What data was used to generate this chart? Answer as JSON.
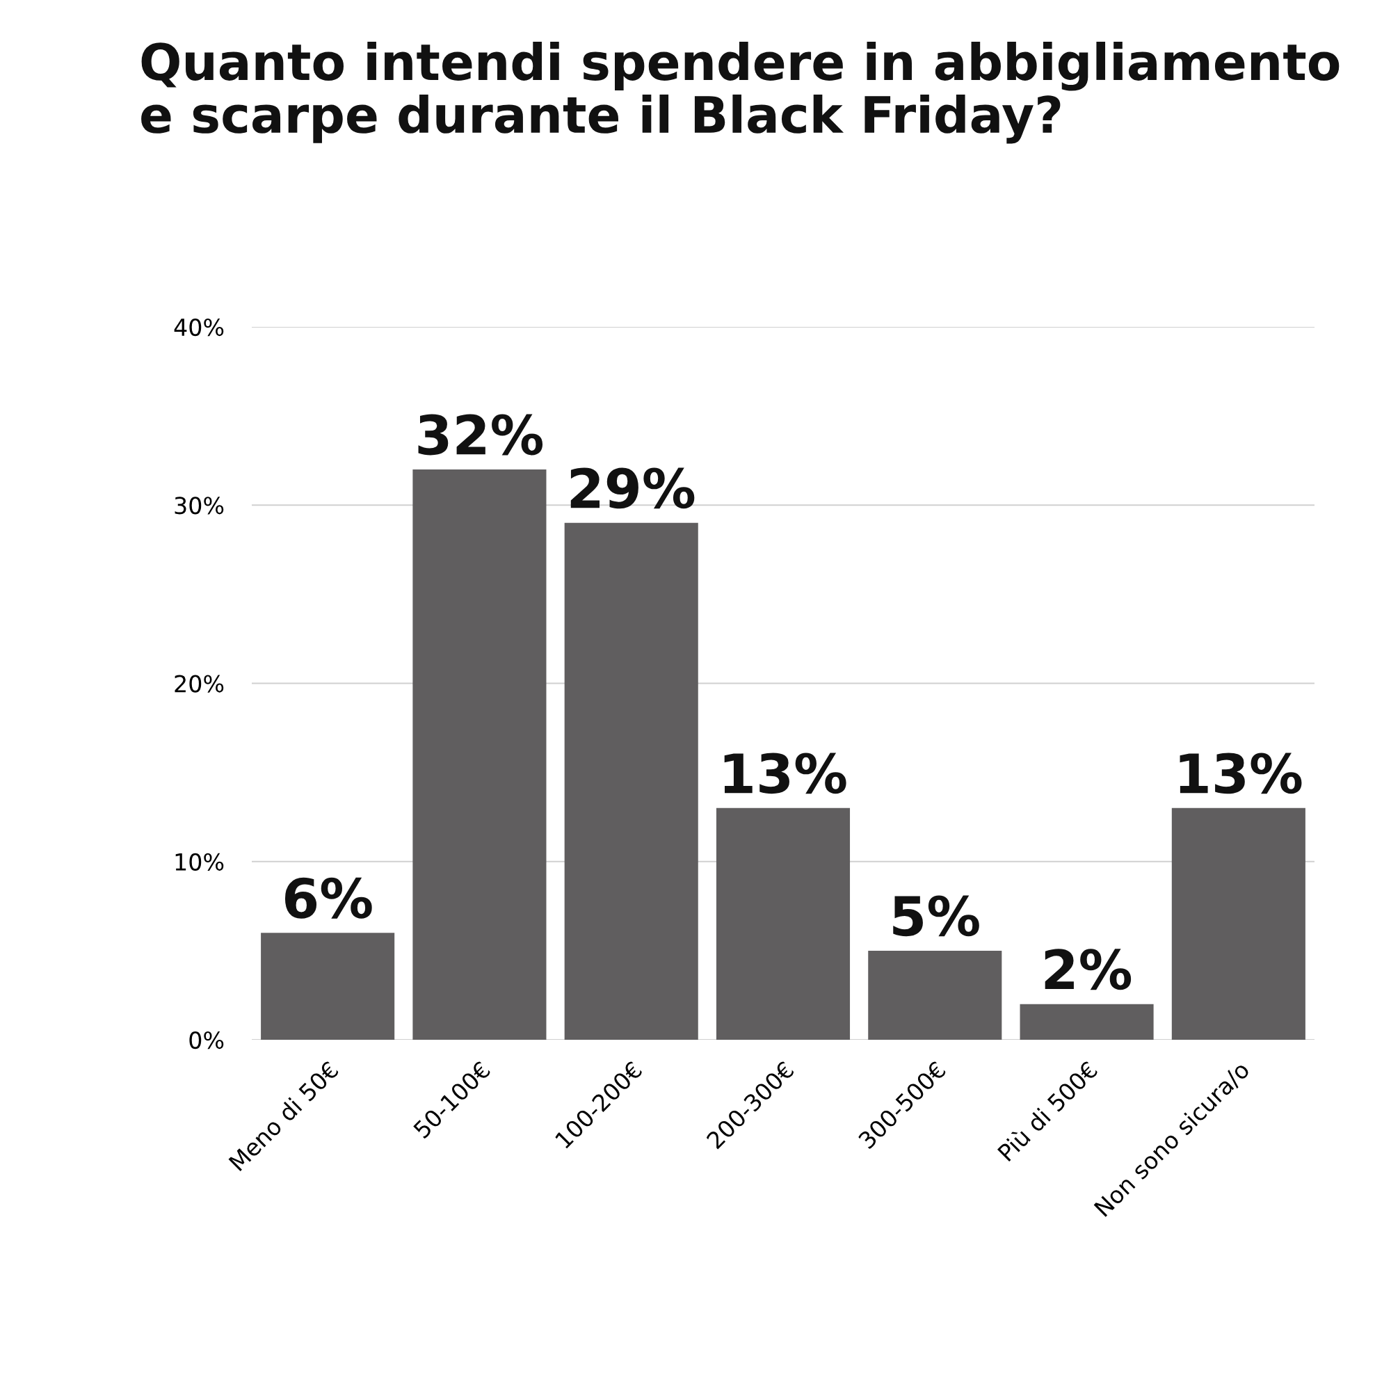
{
  "chart_data": {
    "type": "bar",
    "title": "Quanto intendi spendere in abbigliamento e scarpe durante il Black Friday?",
    "categories": [
      "Meno di 50€",
      "50-100€",
      "100-200€",
      "200-300€",
      "300-500€",
      "Più di 500€",
      "Non sono sicura/o"
    ],
    "values": [
      6,
      32,
      29,
      13,
      5,
      2,
      13
    ],
    "color": "#605e5f",
    "ylim": [
      0,
      40
    ],
    "yticks": [
      {
        "value": 0,
        "label": "0%"
      },
      {
        "value": 10,
        "label": "10%"
      },
      {
        "value": 20,
        "label": "20%"
      },
      {
        "value": 30,
        "label": "30%"
      },
      {
        "value": 40,
        "label": "40%"
      }
    ],
    "value_labels": [
      "6%",
      "32%",
      "29%",
      "13%",
      "5%",
      "2%",
      "13%"
    ],
    "grid": "y"
  }
}
